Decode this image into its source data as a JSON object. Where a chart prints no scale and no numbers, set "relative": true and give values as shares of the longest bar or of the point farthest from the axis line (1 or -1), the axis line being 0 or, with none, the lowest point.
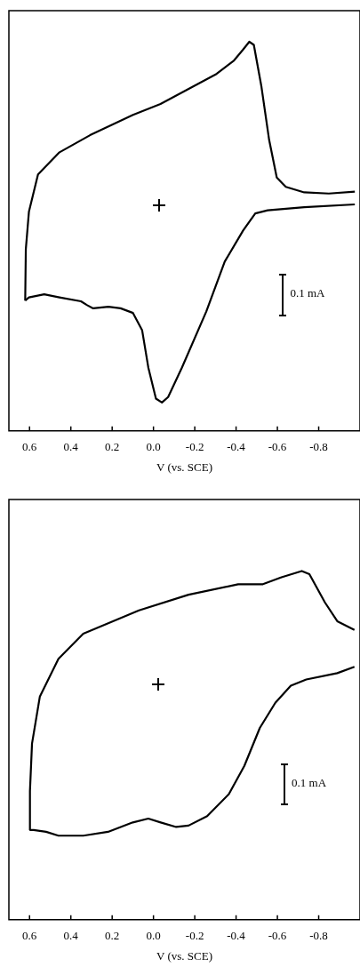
{
  "chart_data": [
    {
      "type": "line",
      "relative": true,
      "xlabel": "V (vs. SCE)",
      "xlim": [
        0.7,
        -1.0
      ],
      "xticks": [
        0.6,
        0.4,
        0.2,
        {
          "value": 0,
          "label": "0.0"
        },
        -0.2,
        -0.4,
        -0.6,
        -0.8
      ],
      "annotations": [
        "0.1 mA"
      ],
      "series": [
        {
          "color": "#000000",
          "x": [
            0.621,
            0.618,
            0.603,
            0.559,
            0.455,
            0.307,
            0.099,
            -0.034,
            -0.301,
            -0.39,
            -0.434,
            -0.464,
            -0.486,
            -0.523,
            -0.56,
            -0.597,
            -0.641,
            -0.73,
            -0.849,
            -0.975
          ],
          "values": [
            0.335,
            0.467,
            0.563,
            0.659,
            0.716,
            0.76,
            0.812,
            0.84,
            0.916,
            0.952,
            0.98,
            1.0,
            0.992,
            0.884,
            0.748,
            0.651,
            0.627,
            0.613,
            0.61,
            0.615
          ]
        },
        {
          "color": "#000000",
          "x": [
            -0.975,
            -0.73,
            -0.553,
            -0.493,
            -0.434,
            -0.345,
            -0.256,
            -0.138,
            -0.071,
            -0.041,
            -0.012,
            0.025,
            0.055,
            0.099,
            0.159,
            0.218,
            0.292,
            0.321,
            0.351,
            0.455,
            0.529,
            0.603,
            0.621
          ],
          "values": [
            0.582,
            0.575,
            0.567,
            0.559,
            0.515,
            0.435,
            0.307,
            0.163,
            0.087,
            0.073,
            0.083,
            0.163,
            0.259,
            0.303,
            0.315,
            0.319,
            0.315,
            0.323,
            0.333,
            0.343,
            0.351,
            0.343,
            0.335
          ]
        }
      ]
    },
    {
      "type": "line",
      "relative": true,
      "xlabel": "V (vs. SCE)",
      "xlim": [
        0.7,
        -1.0
      ],
      "xticks": [
        0.6,
        0.4,
        0.2,
        {
          "value": 0,
          "label": "0.0"
        },
        -0.2,
        -0.4,
        -0.6,
        -0.8
      ],
      "annotations": [
        "0.1 mA"
      ],
      "series": [
        {
          "color": "#000000",
          "x": [
            0.599,
            0.598,
            0.588,
            0.55,
            0.46,
            0.34,
            0.07,
            -0.17,
            -0.41,
            -0.53,
            -0.62,
            -0.718,
            -0.755,
            -0.83,
            -0.89,
            -0.973
          ],
          "values": [
            0.257,
            0.369,
            0.505,
            0.64,
            0.748,
            0.82,
            0.887,
            0.932,
            0.962,
            0.962,
            0.982,
            1.0,
            0.991,
            0.91,
            0.856,
            0.831
          ]
        },
        {
          "color": "#000000",
          "x": [
            -0.973,
            -0.89,
            -0.74,
            -0.665,
            -0.59,
            -0.515,
            -0.44,
            -0.365,
            -0.26,
            -0.17,
            -0.11,
            -0.035,
            0.025,
            0.1,
            0.22,
            0.34,
            0.46,
            0.52,
            0.58,
            0.599
          ],
          "values": [
            0.725,
            0.707,
            0.689,
            0.671,
            0.622,
            0.55,
            0.441,
            0.36,
            0.297,
            0.27,
            0.266,
            0.279,
            0.29,
            0.279,
            0.252,
            0.241,
            0.241,
            0.252,
            0.257,
            0.257
          ]
        }
      ]
    }
  ]
}
